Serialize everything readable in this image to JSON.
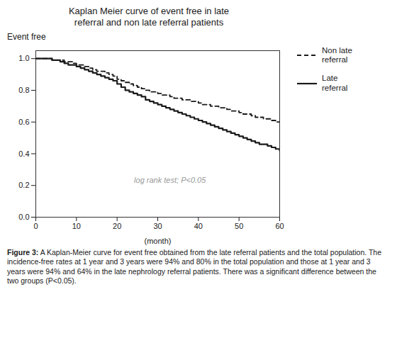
{
  "chart_data": {
    "type": "line",
    "title": "Kaplan Meier curve of event free in late\nreferral and non late referral patients",
    "x_label": "(month)",
    "y_label": "Event free",
    "annotation": "log rank test; P<0.05",
    "caption": "Figure 3: A Kaplan-Meier curve for event free obtained from the late referral patients and the total population. The incidence-free rates at 1 year and 3 years were 94% and 80% in the total population and those at 1 year and 3 years were 94% and 64% in the late nephrology referral patients. There was a significant difference between the two groups (P<0.05).",
    "xlim": [
      0,
      60
    ],
    "ylim": [
      0.0,
      1.05
    ],
    "xticks": [
      0,
      10,
      20,
      30,
      40,
      50,
      60
    ],
    "yticks": [
      {
        "value": 0.0,
        "label": "0.0"
      },
      0.2,
      0.4,
      0.6,
      0.8,
      {
        "value": 1.0,
        "label": "1.0"
      }
    ],
    "legend": "right",
    "series": [
      {
        "name": "Non late\nreferral",
        "color": "#1a1a1a",
        "line_style": "dashed",
        "x": [
          0,
          2,
          4,
          6,
          7,
          8,
          9,
          10,
          12,
          13,
          14,
          15,
          16,
          17,
          18,
          19,
          20,
          21,
          22,
          23,
          24,
          25,
          26,
          27,
          28,
          29,
          30,
          31,
          32,
          33,
          34,
          35,
          36,
          37,
          38,
          39,
          40,
          41,
          42,
          43,
          44,
          45,
          46,
          47,
          48,
          49,
          50,
          51,
          52,
          53,
          54,
          55,
          56,
          57,
          58,
          59,
          60
        ],
        "values": [
          1.0,
          1.0,
          0.99,
          0.99,
          0.98,
          0.98,
          0.97,
          0.96,
          0.95,
          0.94,
          0.93,
          0.92,
          0.92,
          0.91,
          0.9,
          0.89,
          0.87,
          0.86,
          0.85,
          0.84,
          0.83,
          0.82,
          0.81,
          0.8,
          0.79,
          0.79,
          0.78,
          0.77,
          0.77,
          0.76,
          0.75,
          0.75,
          0.74,
          0.74,
          0.73,
          0.73,
          0.72,
          0.71,
          0.71,
          0.7,
          0.7,
          0.69,
          0.69,
          0.68,
          0.67,
          0.67,
          0.66,
          0.65,
          0.65,
          0.64,
          0.63,
          0.63,
          0.62,
          0.62,
          0.61,
          0.6,
          0.6
        ]
      },
      {
        "name": "Late\nreferral",
        "color": "#1a1a1a",
        "line_style": "solid",
        "x": [
          0,
          2,
          4,
          6,
          7,
          8,
          9,
          10,
          11,
          12,
          13,
          14,
          15,
          16,
          17,
          18,
          19,
          20,
          21,
          22,
          23,
          24,
          25,
          26,
          27,
          28,
          29,
          30,
          31,
          32,
          33,
          34,
          35,
          36,
          37,
          38,
          39,
          40,
          41,
          42,
          43,
          44,
          45,
          46,
          47,
          48,
          49,
          50,
          51,
          52,
          53,
          54,
          55,
          56,
          57,
          58,
          59,
          60
        ],
        "values": [
          1.0,
          1.0,
          0.99,
          0.98,
          0.97,
          0.96,
          0.96,
          0.95,
          0.94,
          0.93,
          0.92,
          0.91,
          0.9,
          0.89,
          0.88,
          0.87,
          0.86,
          0.84,
          0.82,
          0.8,
          0.79,
          0.78,
          0.77,
          0.76,
          0.74,
          0.73,
          0.72,
          0.71,
          0.7,
          0.69,
          0.68,
          0.67,
          0.66,
          0.65,
          0.64,
          0.63,
          0.62,
          0.61,
          0.6,
          0.59,
          0.58,
          0.57,
          0.56,
          0.55,
          0.54,
          0.53,
          0.52,
          0.51,
          0.5,
          0.49,
          0.48,
          0.47,
          0.46,
          0.46,
          0.45,
          0.44,
          0.43,
          0.42
        ]
      }
    ]
  }
}
